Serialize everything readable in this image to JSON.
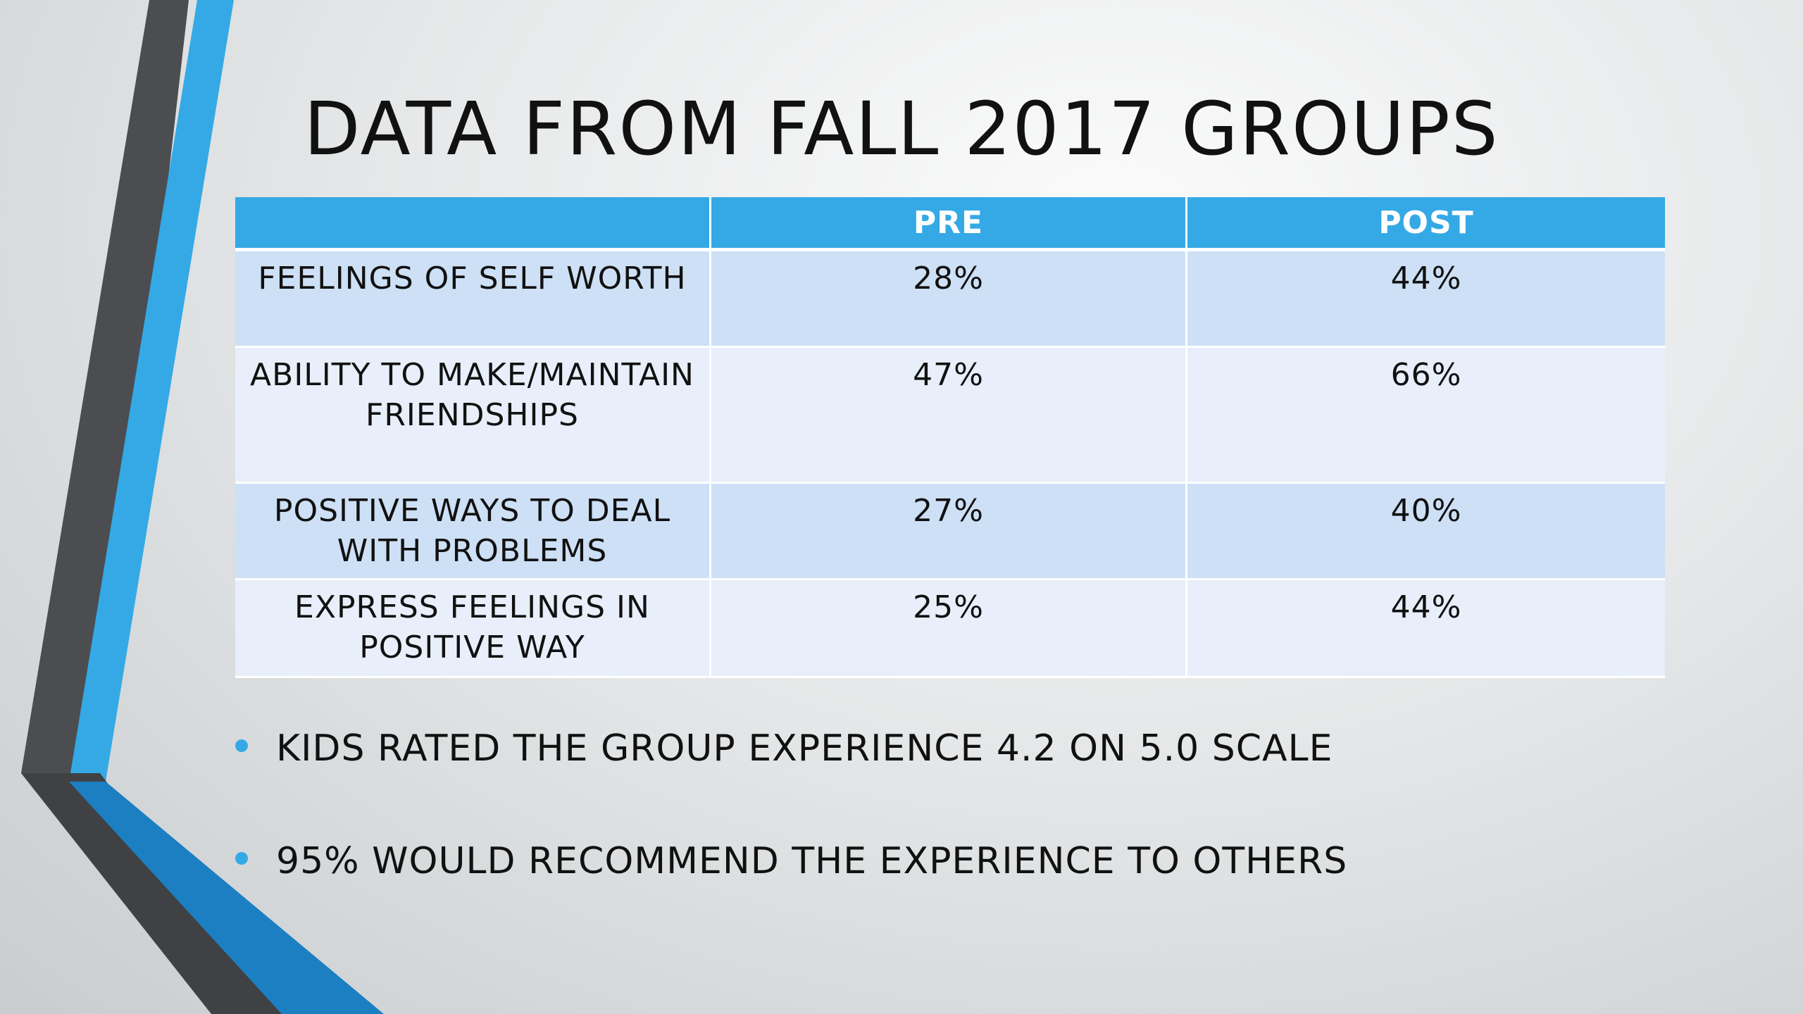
{
  "slide": {
    "title": "DATA FROM FALL 2017 GROUPS"
  },
  "table": {
    "columns": [
      "",
      "PRE",
      "POST"
    ],
    "rows": [
      {
        "label": "FEELINGS OF SELF WORTH",
        "pre": "28%",
        "post": "44%"
      },
      {
        "label": "ABILITY TO MAKE/MAINTAIN FRIENDSHIPS",
        "pre": "47%",
        "post": "66%"
      },
      {
        "label": "POSITIVE WAYS TO DEAL WITH PROBLEMS",
        "pre": "27%",
        "post": "40%"
      },
      {
        "label": "EXPRESS FEELINGS IN POSITIVE WAY",
        "pre": "25%",
        "post": "44%"
      }
    ]
  },
  "bullets": [
    "KIDS RATED THE GROUP EXPERIENCE 4.2 ON 5.0 SCALE",
    "95% WOULD RECOMMEND THE EXPERIENCE TO OTHERS"
  ],
  "colors": {
    "accent_blue": "#35a9e6",
    "dark_blue": "#1c7fc2",
    "dark_gray": "#4b4d50",
    "table_band_a": "#cde0f5",
    "table_band_b": "#e8effa"
  }
}
